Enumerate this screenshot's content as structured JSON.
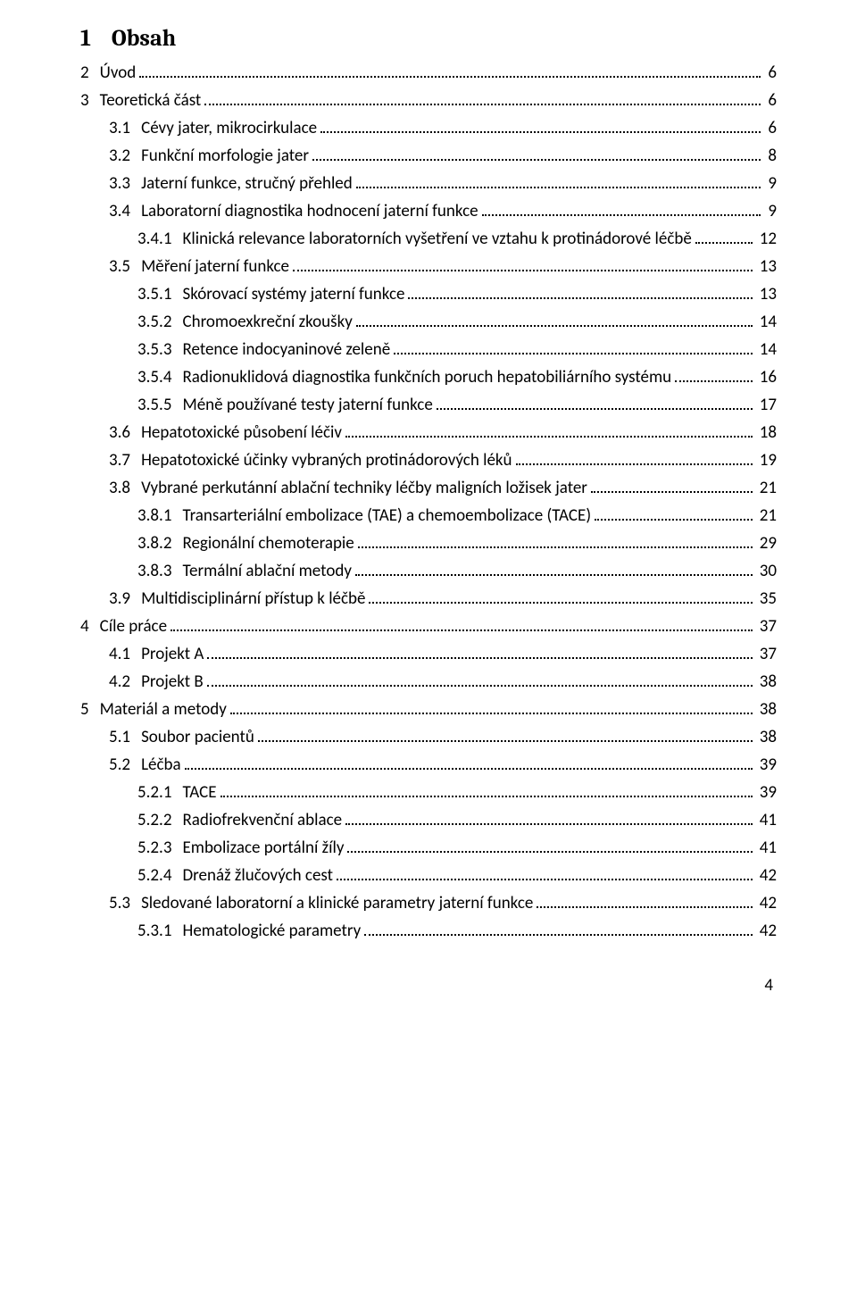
{
  "title_num": "1",
  "title_label": "Obsah",
  "page_number": "4",
  "entries": [
    {
      "lvl": 0,
      "num": "2",
      "label": "Úvod",
      "page": "6"
    },
    {
      "lvl": 0,
      "num": "3",
      "label": "Teoretická část",
      "page": "6"
    },
    {
      "lvl": 1,
      "num": "3.1",
      "label": "Cévy jater, mikrocirkulace",
      "page": "6"
    },
    {
      "lvl": 1,
      "num": "3.2",
      "label": "Funkční morfologie jater",
      "page": "8"
    },
    {
      "lvl": 1,
      "num": "3.3",
      "label": "Jaterní funkce, stručný přehled",
      "page": "9"
    },
    {
      "lvl": 1,
      "num": "3.4",
      "label": "Laboratorní diagnostika hodnocení jaterní funkce",
      "page": "9"
    },
    {
      "lvl": 2,
      "num": "3.4.1",
      "label": "Klinická relevance laboratorních vyšetření ve vztahu k protinádorové léčbě",
      "page": "12"
    },
    {
      "lvl": 1,
      "num": "3.5",
      "label": "Měření jaterní funkce",
      "page": "13"
    },
    {
      "lvl": 2,
      "num": "3.5.1",
      "label": "Skórovací systémy jaterní funkce",
      "page": "13"
    },
    {
      "lvl": 2,
      "num": "3.5.2",
      "label": "Chromoexkreční zkoušky",
      "page": "14"
    },
    {
      "lvl": 2,
      "num": "3.5.3",
      "label": "Retence indocyaninové zeleně",
      "page": "14"
    },
    {
      "lvl": 2,
      "num": "3.5.4",
      "label": "Radionuklidová diagnostika funkčních poruch hepatobiliárního systému",
      "page": "16"
    },
    {
      "lvl": 2,
      "num": "3.5.5",
      "label": "Méně používané testy jaterní funkce",
      "page": "17"
    },
    {
      "lvl": 1,
      "num": "3.6",
      "label": "Hepatotoxické působení léčiv",
      "page": "18"
    },
    {
      "lvl": 1,
      "num": "3.7",
      "label": "Hepatotoxické účinky vybraných protinádorových léků",
      "page": "19"
    },
    {
      "lvl": 1,
      "num": "3.8",
      "label": "Vybrané perkutánní ablační techniky léčby maligních ložisek jater",
      "page": "21"
    },
    {
      "lvl": 2,
      "num": "3.8.1",
      "label": "Transarteriální embolizace (TAE) a chemoembolizace (TACE)",
      "page": "21"
    },
    {
      "lvl": 2,
      "num": "3.8.2",
      "label": "Regionální chemoterapie",
      "page": "29"
    },
    {
      "lvl": 2,
      "num": "3.8.3",
      "label": "Termální ablační metody",
      "page": "30"
    },
    {
      "lvl": 1,
      "num": "3.9",
      "label": "Multidisciplinární přístup k léčbě",
      "page": "35"
    },
    {
      "lvl": 0,
      "num": "4",
      "label": "Cíle práce",
      "page": "37"
    },
    {
      "lvl": 1,
      "num": "4.1",
      "label": "Projekt A",
      "page": "37"
    },
    {
      "lvl": 1,
      "num": "4.2",
      "label": "Projekt B",
      "page": "38"
    },
    {
      "lvl": 0,
      "num": "5",
      "label": "Materiál a metody",
      "page": "38"
    },
    {
      "lvl": 1,
      "num": "5.1",
      "label": "Soubor pacientů",
      "page": "38"
    },
    {
      "lvl": 1,
      "num": "5.2",
      "label": "Léčba",
      "page": "39"
    },
    {
      "lvl": 2,
      "num": "5.2.1",
      "label": "TACE",
      "page": "39"
    },
    {
      "lvl": 2,
      "num": "5.2.2",
      "label": "Radiofrekvenční ablace",
      "page": "41"
    },
    {
      "lvl": 2,
      "num": "5.2.3",
      "label": "Embolizace portální žíly",
      "page": "41"
    },
    {
      "lvl": 2,
      "num": "5.2.4",
      "label": "Drenáž žlučových cest",
      "page": "42"
    },
    {
      "lvl": 1,
      "num": "5.3",
      "label": "Sledované laboratorní a klinické parametry jaterní funkce",
      "page": "42"
    },
    {
      "lvl": 2,
      "num": "5.3.1",
      "label": "Hematologické parametry",
      "page": "42"
    }
  ]
}
